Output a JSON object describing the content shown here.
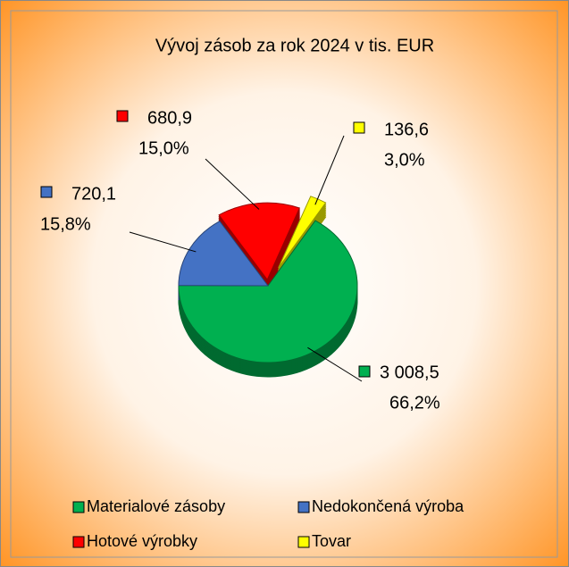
{
  "chart_data": {
    "type": "pie",
    "title": "Vývoj zásob za rok 2024 v tis. EUR",
    "categories": [
      "Materialové zásoby",
      "Nedokončená výroba",
      "Hotové výrobky",
      "Tovar"
    ],
    "values": [
      3008.5,
      720.1,
      680.9,
      136.6
    ],
    "value_labels": [
      "3 008,5",
      "720,1",
      "680,9",
      "136,6"
    ],
    "percents": [
      66.2,
      15.8,
      15.0,
      3.0
    ],
    "percent_labels": [
      "66,2%",
      "15,8%",
      "15,0%",
      "3,0%"
    ],
    "colors": [
      "#00b050",
      "#4472c4",
      "#ff0000",
      "#ffff00"
    ],
    "legend": "bottom"
  }
}
